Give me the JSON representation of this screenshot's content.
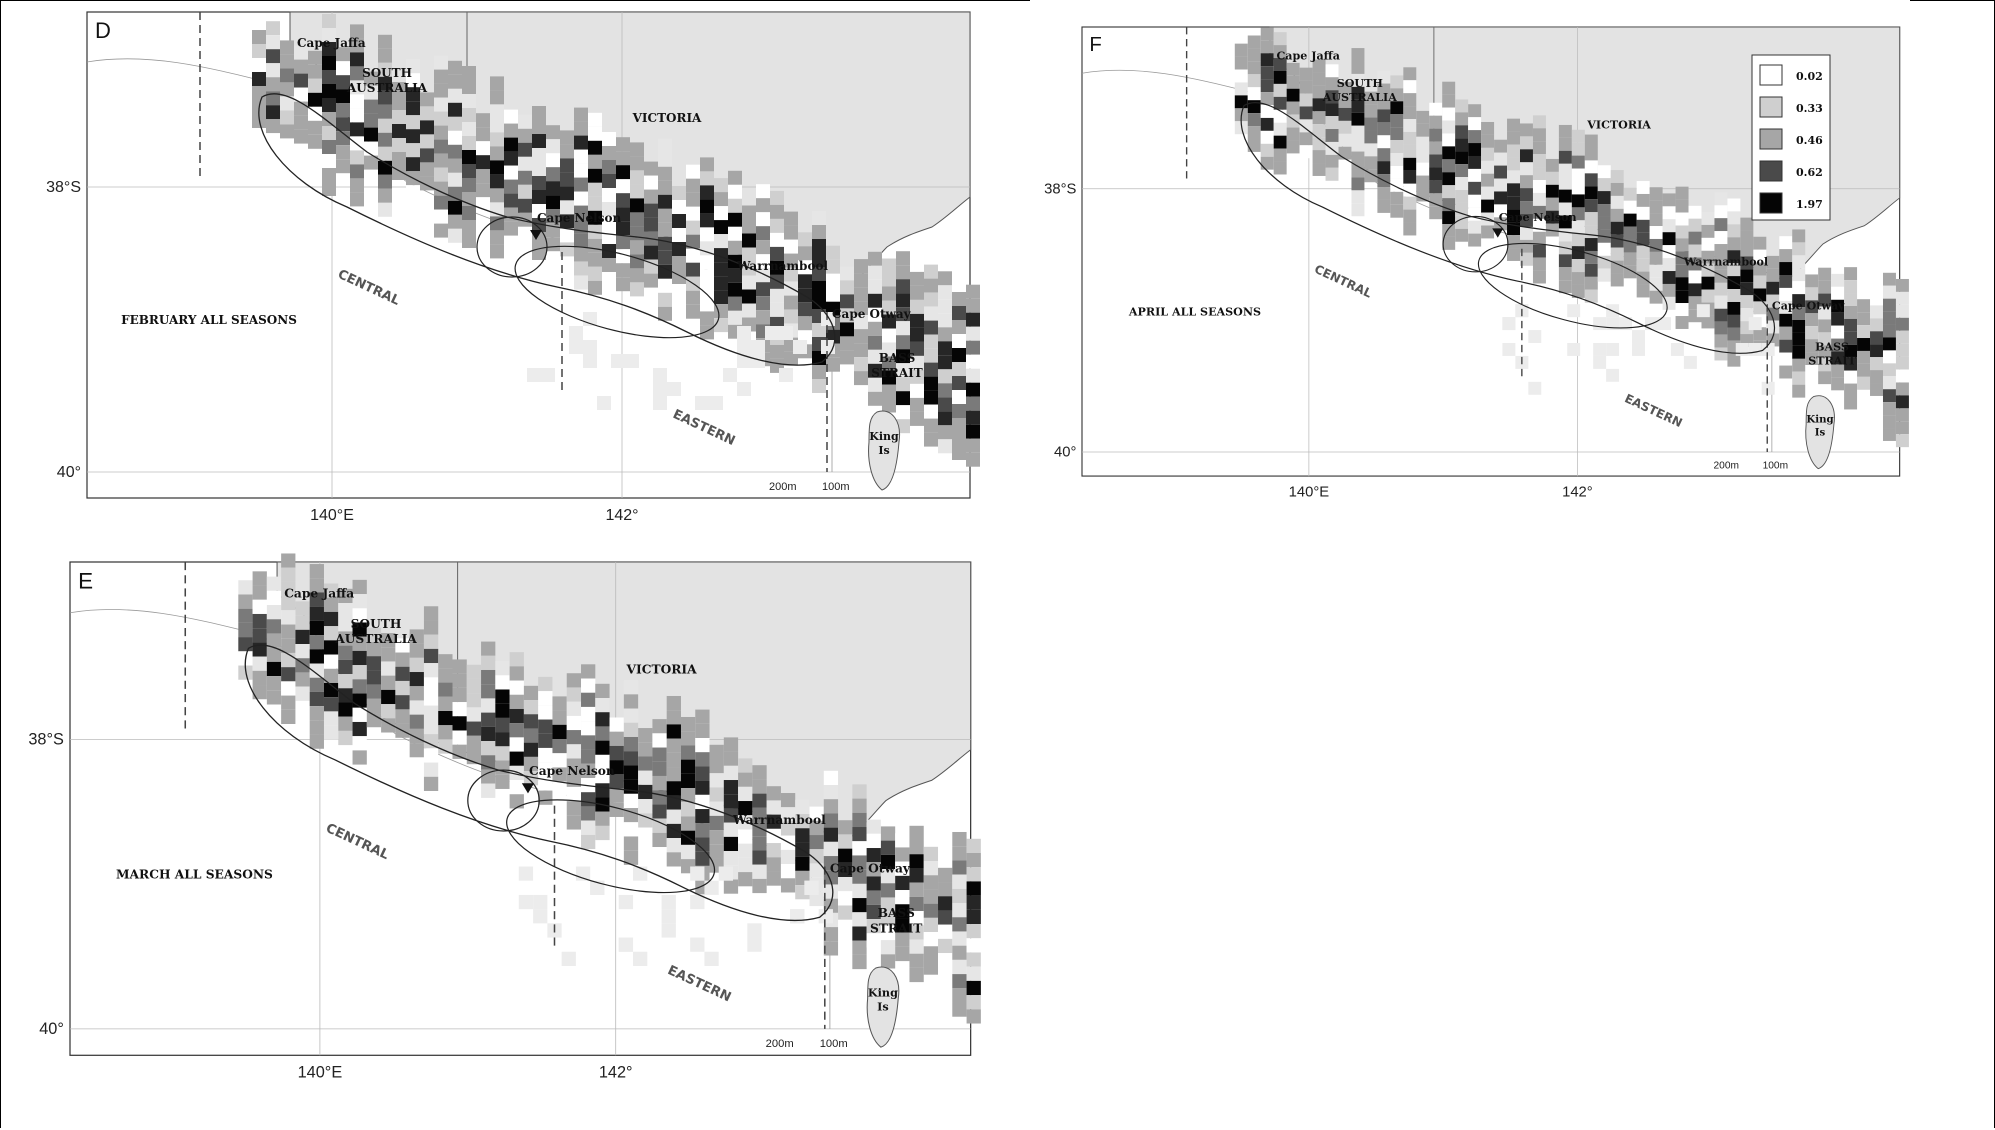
{
  "legend": {
    "items": [
      {
        "label": "0.02",
        "color": "#ffffff"
      },
      {
        "label": "0.33",
        "color": "#cfcfcf"
      },
      {
        "label": "0.46",
        "color": "#a6a6a6"
      },
      {
        "label": "0.62",
        "color": "#4a4a4a"
      },
      {
        "label": "1.97",
        "color": "#050505"
      }
    ]
  },
  "panels": [
    {
      "id": "D",
      "season": "FEBRUARY ALL SEASONS",
      "lat_labels": [
        "38°S",
        "40°"
      ],
      "lon_labels": [
        "140°E",
        "142°"
      ],
      "places": {
        "cape_jaffa": "Cape Jaffa",
        "south_australia": [
          "SOUTH",
          "AUSTRALIA"
        ],
        "victoria": "VICTORIA",
        "cape_nelson": "Cape Nelson",
        "warrnambool": "Warrnambool",
        "cape_otway": "Cape Otway",
        "bass_strait": [
          "BASS",
          "STRAIT"
        ],
        "king_is": [
          "King",
          "Is"
        ],
        "central": "CENTRAL",
        "eastern": "EASTERN",
        "depth_200": "200m",
        "depth_100": "100m"
      }
    },
    {
      "id": "E",
      "season": "MARCH ALL SEASONS",
      "lat_labels": [
        "38°S",
        "40°"
      ],
      "lon_labels": [
        "140°E",
        "142°"
      ],
      "places": {
        "cape_jaffa": "Cape Jaffa",
        "south_australia": [
          "SOUTH",
          "AUSTRALIA"
        ],
        "victoria": "VICTORIA",
        "cape_nelson": "Cape Nelson",
        "warrnambool": "Warrnambool",
        "cape_otway": "Cape Otway",
        "bass_strait": [
          "BASS",
          "STRAIT"
        ],
        "king_is": [
          "King",
          "Is"
        ],
        "central": "CENTRAL",
        "eastern": "EASTERN",
        "depth_200": "200m",
        "depth_100": "100m"
      }
    },
    {
      "id": "F",
      "season": "APRIL ALL SEASONS",
      "lat_labels": [
        "38°S",
        "40°"
      ],
      "lon_labels": [
        "140°E",
        "142°"
      ],
      "places": {
        "cape_jaffa": "Cape Jaffa",
        "south_australia": [
          "SOUTH",
          "AUSTRALIA"
        ],
        "victoria": "VICTORIA",
        "cape_nelson": "Cape Nelson",
        "warrnambool": "Warrnambool",
        "cape_otway": "Cape Otway",
        "bass_strait": [
          "BASS",
          "STRAIT"
        ],
        "king_is": [
          "King",
          "Is"
        ],
        "central": "CENTRAL",
        "eastern": "EASTERN",
        "depth_200": "200m",
        "depth_100": "100m"
      }
    }
  ]
}
